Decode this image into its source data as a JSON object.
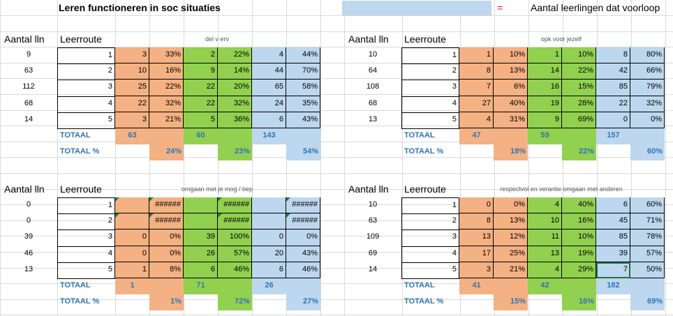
{
  "title": "Leren functioneren in soc situaties",
  "legend": {
    "equals": "=",
    "text": "Aantal leerlingen dat voorloop",
    "swatch_color": "#bdd7ee"
  },
  "colors": {
    "orange": "#f4b183",
    "green": "#92d050",
    "blue": "#bdd7ee",
    "total_text": "#2e75b6"
  },
  "blocks": [
    {
      "id": "del-v-erv",
      "header_lln": "Aantal lln",
      "header_route": "Leerroute",
      "subtitle": "del v erv",
      "rows": [
        {
          "lln": "9",
          "route": "1",
          "o": "3",
          "op": "33%",
          "g": "2",
          "gp": "22%",
          "b": "4",
          "bp": "44%"
        },
        {
          "lln": "63",
          "route": "2",
          "o": "10",
          "op": "16%",
          "g": "9",
          "gp": "14%",
          "b": "44",
          "bp": "70%"
        },
        {
          "lln": "112",
          "route": "3",
          "o": "25",
          "op": "22%",
          "g": "22",
          "gp": "20%",
          "b": "65",
          "bp": "58%"
        },
        {
          "lln": "68",
          "route": "4",
          "o": "22",
          "op": "32%",
          "g": "22",
          "gp": "32%",
          "b": "24",
          "bp": "35%"
        },
        {
          "lln": "14",
          "route": "5",
          "o": "3",
          "op": "21%",
          "g": "5",
          "gp": "36%",
          "b": "6",
          "bp": "43%"
        }
      ],
      "total_label": "TOTAAL",
      "totals": {
        "o": "63",
        "g": "60",
        "b": "143"
      },
      "total_pct_label": "TOTAAL %",
      "total_pcts": {
        "o": "24%",
        "g": "23%",
        "b": "54%"
      }
    },
    {
      "id": "opk-voor-jezelf",
      "header_lln": "Aantal lln",
      "header_route": "Leerroute",
      "subtitle": "opk voor jezelf",
      "rows": [
        {
          "lln": "10",
          "route": "1",
          "o": "1",
          "op": "10%",
          "g": "1",
          "gp": "10%",
          "b": "8",
          "bp": "80%"
        },
        {
          "lln": "64",
          "route": "2",
          "o": "8",
          "op": "13%",
          "g": "14",
          "gp": "22%",
          "b": "42",
          "bp": "66%"
        },
        {
          "lln": "108",
          "route": "3",
          "o": "7",
          "op": "6%",
          "g": "16",
          "gp": "15%",
          "b": "85",
          "bp": "79%"
        },
        {
          "lln": "68",
          "route": "4",
          "o": "27",
          "op": "40%",
          "g": "19",
          "gp": "28%",
          "b": "22",
          "bp": "32%"
        },
        {
          "lln": "13",
          "route": "5",
          "o": "4",
          "op": "31%",
          "g": "9",
          "gp": "69%",
          "b": "0",
          "bp": "0%"
        }
      ],
      "total_label": "TOTAAL",
      "totals": {
        "o": "47",
        "g": "59",
        "b": "157"
      },
      "total_pct_label": "TOTAAL %",
      "total_pcts": {
        "o": "18%",
        "g": "22%",
        "b": "60%"
      }
    },
    {
      "id": "omgaan-mog-bep",
      "header_lln": "Aantal lln",
      "header_route": "Leerroute",
      "subtitle": "omgaan met je mog / bep",
      "rows": [
        {
          "lln": "0",
          "route": "1",
          "o": "",
          "op": "######",
          "g": "",
          "gp": "######",
          "b": "",
          "bp": "######"
        },
        {
          "lln": "0",
          "route": "2",
          "o": "",
          "op": "######",
          "g": "",
          "gp": "######",
          "b": "",
          "bp": "######"
        },
        {
          "lln": "39",
          "route": "3",
          "o": "0",
          "op": "0%",
          "g": "39",
          "gp": "100%",
          "b": "0",
          "bp": "0%"
        },
        {
          "lln": "46",
          "route": "4",
          "o": "0",
          "op": "0%",
          "g": "26",
          "gp": "57%",
          "b": "20",
          "bp": "43%"
        },
        {
          "lln": "13",
          "route": "5",
          "o": "1",
          "op": "8%",
          "g": "6",
          "gp": "46%",
          "b": "6",
          "bp": "46%"
        }
      ],
      "total_label": "TOTAAL",
      "totals": {
        "o": "1",
        "g": "71",
        "b": "26"
      },
      "total_pct_label": "TOTAAL %",
      "total_pcts": {
        "o": "1%",
        "g": "72%",
        "b": "27%"
      }
    },
    {
      "id": "respectvol",
      "header_lln": "Aantal lln",
      "header_route": "Leerroute",
      "subtitle": "respectvol en verantw omgaan met anderen",
      "rows": [
        {
          "lln": "10",
          "route": "1",
          "o": "0",
          "op": "0%",
          "g": "4",
          "gp": "40%",
          "b": "6",
          "bp": "60%"
        },
        {
          "lln": "63",
          "route": "2",
          "o": "8",
          "op": "13%",
          "g": "10",
          "gp": "16%",
          "b": "45",
          "bp": "71%"
        },
        {
          "lln": "109",
          "route": "3",
          "o": "13",
          "op": "12%",
          "g": "11",
          "gp": "10%",
          "b": "85",
          "bp": "78%"
        },
        {
          "lln": "69",
          "route": "4",
          "o": "17",
          "op": "25%",
          "g": "13",
          "gp": "19%",
          "b": "39",
          "bp": "57%"
        },
        {
          "lln": "14",
          "route": "5",
          "o": "3",
          "op": "21%",
          "g": "4",
          "gp": "29%",
          "b": "7",
          "bp": "50%"
        }
      ],
      "total_label": "TOTAAL",
      "totals": {
        "o": "41",
        "g": "42",
        "b": "182"
      },
      "total_pct_label": "TOTAAL %",
      "total_pcts": {
        "o": "15%",
        "g": "16%",
        "b": "69%"
      }
    }
  ]
}
